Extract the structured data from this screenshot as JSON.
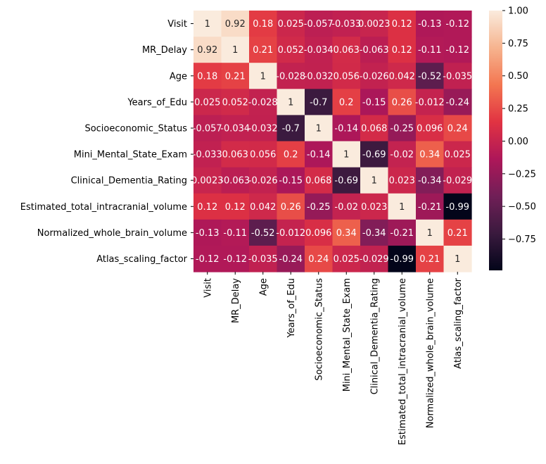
{
  "chart_data": {
    "type": "heatmap",
    "title": "",
    "xlabel": "",
    "ylabel": "",
    "labels": [
      "Visit",
      "MR_Delay",
      "Age",
      "Years_of_Edu",
      "Socioeconomic_Status",
      "Mini_Mental_State_Exam",
      "Clinical_Dementia_Rating",
      "Estimated_total_intracranial_volume",
      "Normalized_whole_brain_volume",
      "Atlas_scaling_factor"
    ],
    "matrix": [
      [
        1,
        0.92,
        0.18,
        0.025,
        -0.057,
        -0.033,
        0.0023,
        0.12,
        -0.13,
        -0.12
      ],
      [
        0.92,
        1,
        0.21,
        0.052,
        -0.034,
        0.063,
        -0.063,
        0.12,
        -0.11,
        -0.12
      ],
      [
        0.18,
        0.21,
        1,
        -0.028,
        -0.032,
        0.056,
        -0.026,
        0.042,
        -0.52,
        -0.035
      ],
      [
        0.025,
        0.052,
        -0.028,
        1,
        -0.7,
        0.2,
        -0.15,
        0.26,
        -0.012,
        -0.24
      ],
      [
        -0.057,
        -0.034,
        -0.032,
        -0.7,
        1,
        -0.14,
        0.068,
        -0.25,
        0.096,
        0.24
      ],
      [
        -0.033,
        0.063,
        0.056,
        0.2,
        -0.14,
        1,
        -0.69,
        -0.02,
        0.34,
        0.025
      ],
      [
        0.0023,
        -0.063,
        -0.026,
        -0.15,
        0.068,
        -0.69,
        1,
        0.023,
        -0.34,
        -0.029
      ],
      [
        0.12,
        0.12,
        0.042,
        0.26,
        -0.25,
        -0.02,
        0.023,
        1,
        -0.21,
        -0.99
      ],
      [
        -0.13,
        -0.11,
        -0.52,
        -0.012,
        0.096,
        0.34,
        -0.34,
        -0.21,
        1,
        0.21
      ],
      [
        -0.12,
        -0.12,
        -0.035,
        -0.24,
        0.24,
        0.025,
        -0.029,
        -0.99,
        0.21,
        1
      ]
    ],
    "annotations": [
      [
        "1",
        "0.92",
        "0.18",
        "0.025",
        "-0.057",
        "-0.033",
        "0.0023",
        "0.12",
        "-0.13",
        "-0.12"
      ],
      [
        "0.92",
        "1",
        "0.21",
        "0.052",
        "-0.034",
        "0.063",
        "-0.063",
        "0.12",
        "-0.11",
        "-0.12"
      ],
      [
        "0.18",
        "0.21",
        "1",
        "-0.028",
        "-0.032",
        "0.056",
        "-0.026",
        "0.042",
        "-0.52",
        "-0.035"
      ],
      [
        "0.025",
        "0.052",
        "-0.028",
        "1",
        "-0.7",
        "0.2",
        "-0.15",
        "0.26",
        "-0.012",
        "-0.24"
      ],
      [
        "-0.057",
        "-0.034",
        "-0.032",
        "-0.7",
        "1",
        "-0.14",
        "0.068",
        "-0.25",
        "0.096",
        "0.24"
      ],
      [
        "-0.033",
        "0.063",
        "0.056",
        "0.2",
        "-0.14",
        "1",
        "-0.69",
        "-0.02",
        "0.34",
        "0.025"
      ],
      [
        "0.0023",
        "-0.063",
        "-0.026",
        "-0.15",
        "0.068",
        "-0.69",
        "1",
        "0.023",
        "-0.34",
        "-0.029"
      ],
      [
        "0.12",
        "0.12",
        "0.042",
        "0.26",
        "-0.25",
        "-0.02",
        "0.023",
        "1",
        "-0.21",
        "-0.99"
      ],
      [
        "-0.13",
        "-0.11",
        "-0.52",
        "-0.012",
        "0.096",
        "0.34",
        "-0.34",
        "-0.21",
        "1",
        "0.21"
      ],
      [
        "-0.12",
        "-0.12",
        "-0.035",
        "-0.24",
        "0.24",
        "0.025",
        "-0.029",
        "-0.99",
        "0.21",
        "1"
      ]
    ],
    "colorscale": {
      "name": "rocket",
      "vmin": -0.99,
      "vmax": 1.0,
      "stops": [
        "#03051A",
        "#3A1A3E",
        "#701F57",
        "#AE1759",
        "#E13342",
        "#F37651",
        "#F6B48F",
        "#FAEBDD"
      ]
    },
    "colorbar": {
      "ticks": [
        1.0,
        0.75,
        0.5,
        0.25,
        0.0,
        -0.25,
        -0.5,
        -0.75
      ],
      "tick_labels": [
        "1.00",
        "0.75",
        "0.50",
        "0.25",
        "0.00",
        "−0.25",
        "−0.50",
        "−0.75"
      ]
    },
    "grid": false,
    "legend": "colorbar-right"
  }
}
